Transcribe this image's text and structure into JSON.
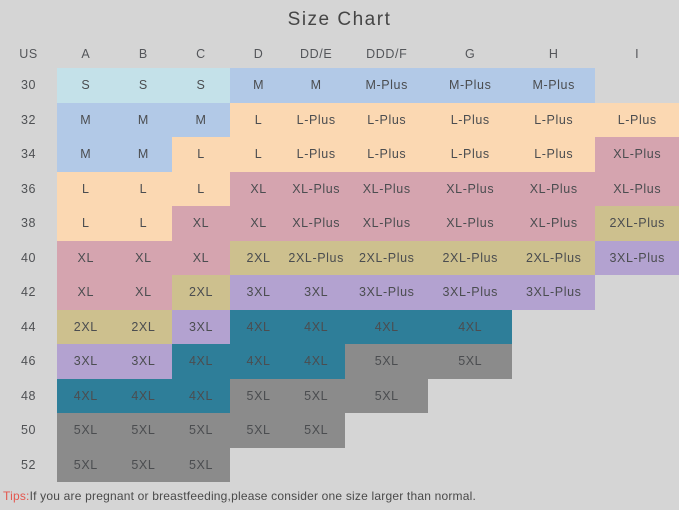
{
  "colors": {
    "background": "#d5d5d5",
    "cyan": "#c4e1e9",
    "blue": "#b2c9e7",
    "peach": "#fbd8b2",
    "rose": "#d5a4af",
    "olive": "#cdc08e",
    "purple": "#b3a2d0",
    "teal": "#2e7e99",
    "gray": "#8b8b8b",
    "none": "transparent",
    "tips_accent": "#e4574f",
    "text": "#4b4d50"
  },
  "chart_data": {
    "type": "table",
    "title": "Size Chart",
    "columns": [
      "US",
      "A",
      "B",
      "C",
      "D",
      "DD/E",
      "DDD/F",
      "G",
      "H",
      "I"
    ],
    "rows": [
      {
        "us": "30",
        "cells": [
          [
            "S",
            "cyan"
          ],
          [
            "S",
            "cyan"
          ],
          [
            "S",
            "cyan"
          ],
          [
            "M",
            "blue"
          ],
          [
            "M",
            "blue"
          ],
          [
            "M-Plus",
            "blue"
          ],
          [
            "M-Plus",
            "blue"
          ],
          [
            "M-Plus",
            "blue"
          ],
          [
            "",
            "none"
          ]
        ]
      },
      {
        "us": "32",
        "cells": [
          [
            "M",
            "blue"
          ],
          [
            "M",
            "blue"
          ],
          [
            "M",
            "blue"
          ],
          [
            "L",
            "peach"
          ],
          [
            "L-Plus",
            "peach"
          ],
          [
            "L-Plus",
            "peach"
          ],
          [
            "L-Plus",
            "peach"
          ],
          [
            "L-Plus",
            "peach"
          ],
          [
            "L-Plus",
            "peach"
          ]
        ]
      },
      {
        "us": "34",
        "cells": [
          [
            "M",
            "blue"
          ],
          [
            "M",
            "blue"
          ],
          [
            "L",
            "peach"
          ],
          [
            "L",
            "peach"
          ],
          [
            "L-Plus",
            "peach"
          ],
          [
            "L-Plus",
            "peach"
          ],
          [
            "L-Plus",
            "peach"
          ],
          [
            "L-Plus",
            "peach"
          ],
          [
            "XL-Plus",
            "rose"
          ]
        ]
      },
      {
        "us": "36",
        "cells": [
          [
            "L",
            "peach"
          ],
          [
            "L",
            "peach"
          ],
          [
            "L",
            "peach"
          ],
          [
            "XL",
            "rose"
          ],
          [
            "XL-Plus",
            "rose"
          ],
          [
            "XL-Plus",
            "rose"
          ],
          [
            "XL-Plus",
            "rose"
          ],
          [
            "XL-Plus",
            "rose"
          ],
          [
            "XL-Plus",
            "rose"
          ]
        ]
      },
      {
        "us": "38",
        "cells": [
          [
            "L",
            "peach"
          ],
          [
            "L",
            "peach"
          ],
          [
            "XL",
            "rose"
          ],
          [
            "XL",
            "rose"
          ],
          [
            "XL-Plus",
            "rose"
          ],
          [
            "XL-Plus",
            "rose"
          ],
          [
            "XL-Plus",
            "rose"
          ],
          [
            "XL-Plus",
            "rose"
          ],
          [
            "2XL-Plus",
            "olive"
          ]
        ]
      },
      {
        "us": "40",
        "cells": [
          [
            "XL",
            "rose"
          ],
          [
            "XL",
            "rose"
          ],
          [
            "XL",
            "rose"
          ],
          [
            "2XL",
            "olive"
          ],
          [
            "2XL-Plus",
            "olive"
          ],
          [
            "2XL-Plus",
            "olive"
          ],
          [
            "2XL-Plus",
            "olive"
          ],
          [
            "2XL-Plus",
            "olive"
          ],
          [
            "3XL-Plus",
            "purple"
          ]
        ]
      },
      {
        "us": "42",
        "cells": [
          [
            "XL",
            "rose"
          ],
          [
            "XL",
            "rose"
          ],
          [
            "2XL",
            "olive"
          ],
          [
            "3XL",
            "purple"
          ],
          [
            "3XL",
            "purple"
          ],
          [
            "3XL-Plus",
            "purple"
          ],
          [
            "3XL-Plus",
            "purple"
          ],
          [
            "3XL-Plus",
            "purple"
          ],
          [
            "",
            "none"
          ]
        ]
      },
      {
        "us": "44",
        "cells": [
          [
            "2XL",
            "olive"
          ],
          [
            "2XL",
            "olive"
          ],
          [
            "3XL",
            "purple"
          ],
          [
            "4XL",
            "teal"
          ],
          [
            "4XL",
            "teal"
          ],
          [
            "4XL",
            "teal"
          ],
          [
            "4XL",
            "teal"
          ],
          [
            "",
            "none"
          ],
          [
            "",
            "none"
          ]
        ]
      },
      {
        "us": "46",
        "cells": [
          [
            "3XL",
            "purple"
          ],
          [
            "3XL",
            "purple"
          ],
          [
            "4XL",
            "teal"
          ],
          [
            "4XL",
            "teal"
          ],
          [
            "4XL",
            "teal"
          ],
          [
            "5XL",
            "gray"
          ],
          [
            "5XL",
            "gray"
          ],
          [
            "",
            "none"
          ],
          [
            "",
            "none"
          ]
        ]
      },
      {
        "us": "48",
        "cells": [
          [
            "4XL",
            "teal"
          ],
          [
            "4XL",
            "teal"
          ],
          [
            "4XL",
            "teal"
          ],
          [
            "5XL",
            "gray"
          ],
          [
            "5XL",
            "gray"
          ],
          [
            "5XL",
            "gray"
          ],
          [
            "",
            "none"
          ],
          [
            "",
            "none"
          ],
          [
            "",
            "none"
          ]
        ]
      },
      {
        "us": "50",
        "cells": [
          [
            "5XL",
            "gray"
          ],
          [
            "5XL",
            "gray"
          ],
          [
            "5XL",
            "gray"
          ],
          [
            "5XL",
            "gray"
          ],
          [
            "5XL",
            "gray"
          ],
          [
            "",
            "none"
          ],
          [
            "",
            "none"
          ],
          [
            "",
            "none"
          ],
          [
            "",
            "none"
          ]
        ]
      },
      {
        "us": "52",
        "cells": [
          [
            "5XL",
            "gray"
          ],
          [
            "5XL",
            "gray"
          ],
          [
            "5XL",
            "gray"
          ],
          [
            "",
            "none"
          ],
          [
            "",
            "none"
          ],
          [
            "",
            "none"
          ],
          [
            "",
            "none"
          ],
          [
            "",
            "none"
          ],
          [
            "",
            "none"
          ]
        ]
      }
    ]
  },
  "tips": {
    "label": "Tips:",
    "text": "If you are pregnant or breastfeeding,please consider one size larger than normal."
  }
}
